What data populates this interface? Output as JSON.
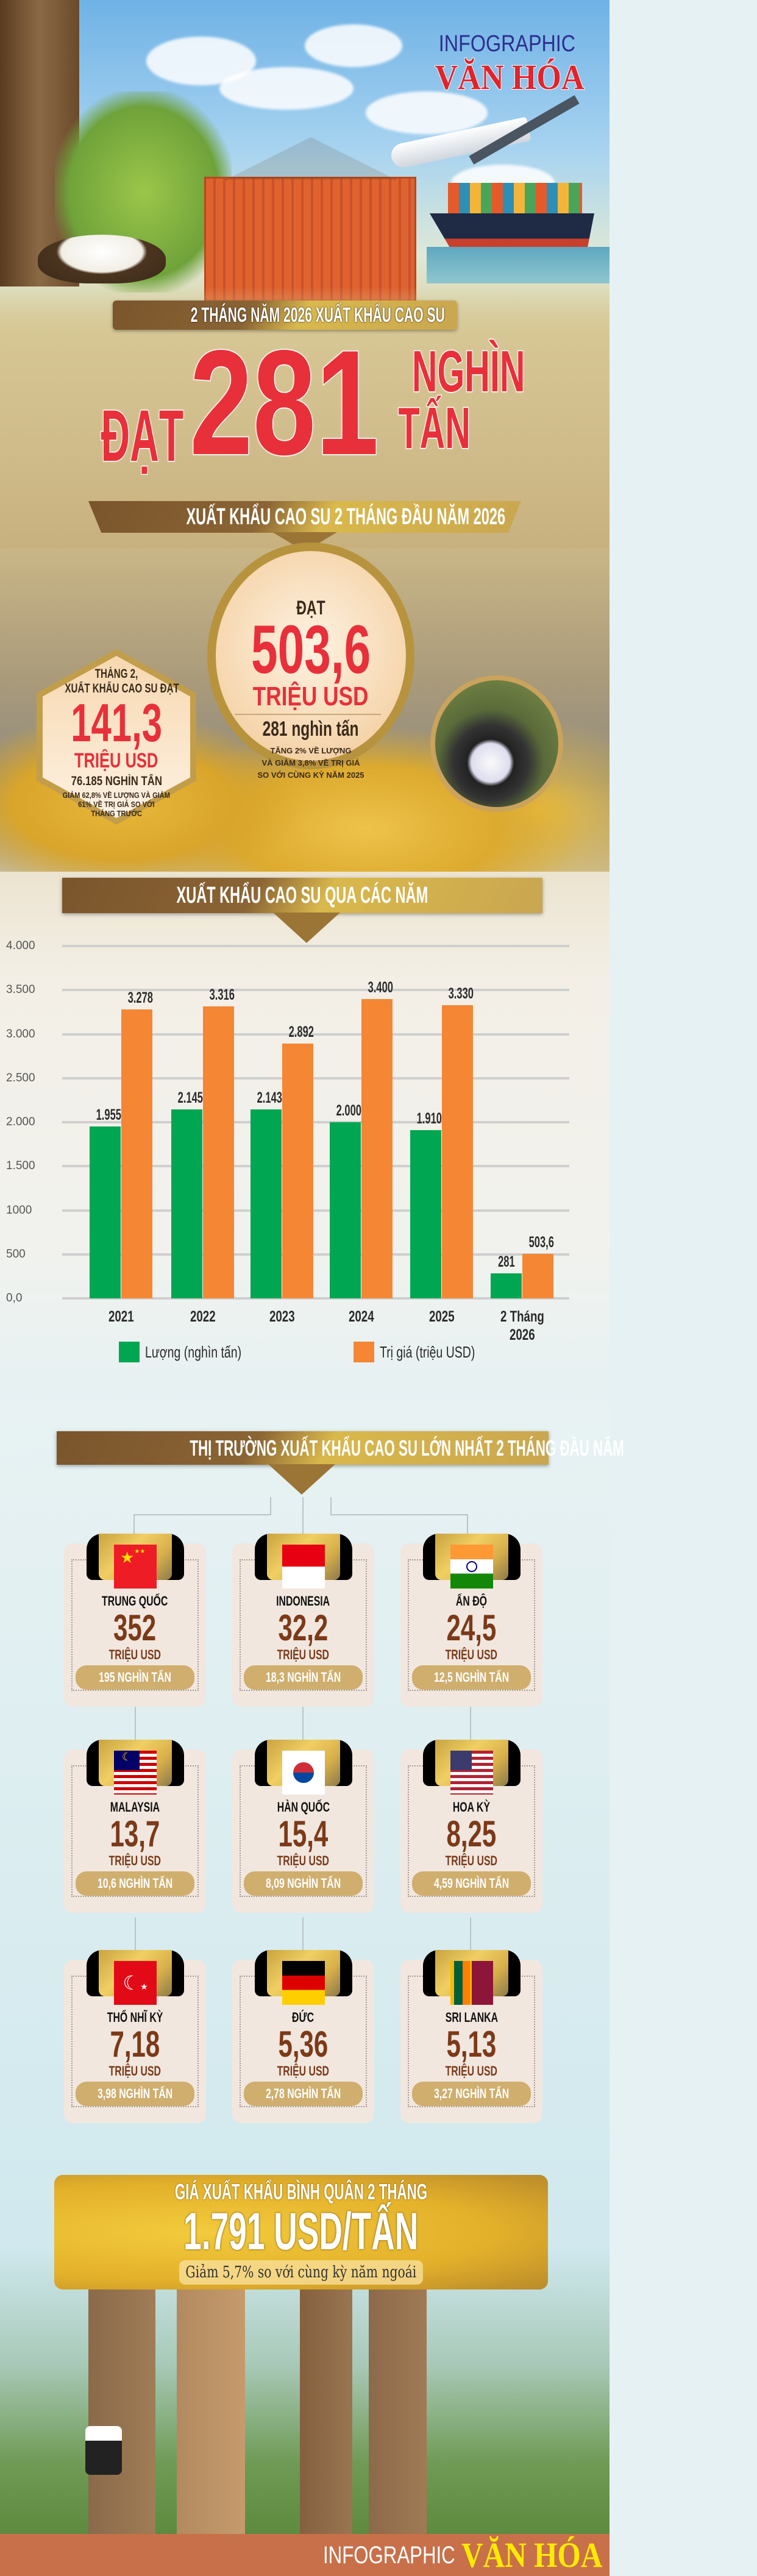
{
  "brand": {
    "infographic": "INFOGRAPHIC",
    "name": "VĂN HÓA"
  },
  "hero": {
    "kicker": "2 THÁNG NĂM 2026 XUẤT KHẨU CAO SU",
    "prefix": "ĐẠT",
    "number": "281",
    "unit_line1": "NGHÌN",
    "unit_line2": "TẤN"
  },
  "summary": {
    "banner": "XUẤT KHẨU CAO SU 2 THÁNG ĐẦU NĂM 2026",
    "main": {
      "label": "ĐẠT",
      "value": "503,6",
      "unit": "TRIỆU USD",
      "volume": "281 nghìn tấn",
      "note_lines": [
        "TĂNG 2% VỀ LƯỢNG",
        "VÀ GIẢM 3,8% VỀ TRỊ GIÁ",
        "SO VỚI CÙNG KỲ NĂM 2025"
      ]
    },
    "february": {
      "label_lines": [
        "THÁNG 2,",
        "XUẤT KHẨU CAO SU ĐẠT"
      ],
      "value": "141,3",
      "unit": "TRIỆU USD",
      "volume": "76.185 NGHÌN TẤN",
      "note_lines": [
        "GIẢM 62,8% VỀ LƯỢNG VÀ GIẢM",
        "61% VỀ TRỊ GIÁ SO VỚI",
        "THÁNG TRƯỚC"
      ]
    }
  },
  "chart_section": {
    "banner": "XUẤT KHẨU CAO SU QUA CÁC NĂM"
  },
  "chart_data": {
    "type": "bar",
    "categories": [
      "2021",
      "2022",
      "2023",
      "2024",
      "2025",
      "2 Tháng 2026"
    ],
    "category_lines": [
      [
        "2021"
      ],
      [
        "2022"
      ],
      [
        "2023"
      ],
      [
        "2024"
      ],
      [
        "2025"
      ],
      [
        "2 Tháng",
        "2026"
      ]
    ],
    "series": [
      {
        "name": "Lượng (nghìn tấn)",
        "color": "#00a651",
        "values": [
          1955,
          2145,
          2143,
          2000,
          1910,
          281
        ],
        "labels": [
          "1.955",
          "2.145",
          "2.143",
          "2.000",
          "1.910",
          "281"
        ]
      },
      {
        "name": "Trị giá (triệu USD)",
        "color": "#f58634",
        "values": [
          3278,
          3316,
          2892,
          3400,
          3330,
          503.6
        ],
        "labels": [
          "3.278",
          "3.316",
          "2.892",
          "3.400",
          "3.330",
          "503,6"
        ]
      }
    ],
    "yticks": [
      4000,
      3500,
      3000,
      2500,
      2000,
      1500,
      1000,
      500,
      0
    ],
    "ytick_labels": [
      "4.000",
      "3.500",
      "3.000",
      "2.500",
      "2.000",
      "1.500",
      "1000",
      "500",
      "0,0"
    ],
    "ylim": [
      0,
      4000
    ],
    "grid": true,
    "legend": "bottom"
  },
  "markets": {
    "banner": "THỊ TRƯỜNG XUẤT KHẨU CAO SU LỚN NHẤT 2 THÁNG ĐẦU NĂM",
    "items": [
      {
        "country": "TRUNG QUỐC",
        "flag": "china",
        "value": "352",
        "unit": "TRIỆU USD",
        "volume": "195 NGHÌN TẤN"
      },
      {
        "country": "INDONESIA",
        "flag": "indonesia",
        "value": "32,2",
        "unit": "TRIỆU USD",
        "volume": "18,3 NGHÌN TẤN"
      },
      {
        "country": "ẤN ĐỘ",
        "flag": "india",
        "value": "24,5",
        "unit": "TRIỆU USD",
        "volume": "12,5 NGHÌN TẤN"
      },
      {
        "country": "MALAYSIA",
        "flag": "malaysia",
        "value": "13,7",
        "unit": "TRIỆU USD",
        "volume": "10,6 NGHÌN TẤN"
      },
      {
        "country": "HÀN QUỐC",
        "flag": "south-korea",
        "value": "15,4",
        "unit": "TRIỆU USD",
        "volume": "8,09 NGHÌN TẤN"
      },
      {
        "country": "HOA KỲ",
        "flag": "usa",
        "value": "8,25",
        "unit": "TRIỆU USD",
        "volume": "4,59 NGHÌN TẤN"
      },
      {
        "country": "THỔ NHĨ KỲ",
        "flag": "turkey",
        "value": "7,18",
        "unit": "TRIỆU USD",
        "volume": "3,98 NGHÌN TẤN"
      },
      {
        "country": "ĐỨC",
        "flag": "germany",
        "value": "5,36",
        "unit": "TRIỆU USD",
        "volume": "2,78 NGHÌN TẤN"
      },
      {
        "country": "SRI LANKA",
        "flag": "sri-lanka",
        "value": "5,13",
        "unit": "TRIỆU USD",
        "volume": "3,27 NGHÌN TẤN"
      }
    ]
  },
  "price": {
    "title": "GIÁ XUẤT KHẨU BÌNH QUÂN 2 THÁNG",
    "value": "1.791 USD/TẤN",
    "note": "Giảm 5,7% so với cùng kỳ năm ngoái"
  },
  "colors": {
    "accent_red": "#e8303a",
    "brown": "#7b3a1a",
    "gold": "#cfae6e",
    "green": "#00a651",
    "orange": "#f58634",
    "footer": "#c8704a",
    "footer_brand": "#ffea00",
    "brand_blue": "#2d2f8f"
  }
}
